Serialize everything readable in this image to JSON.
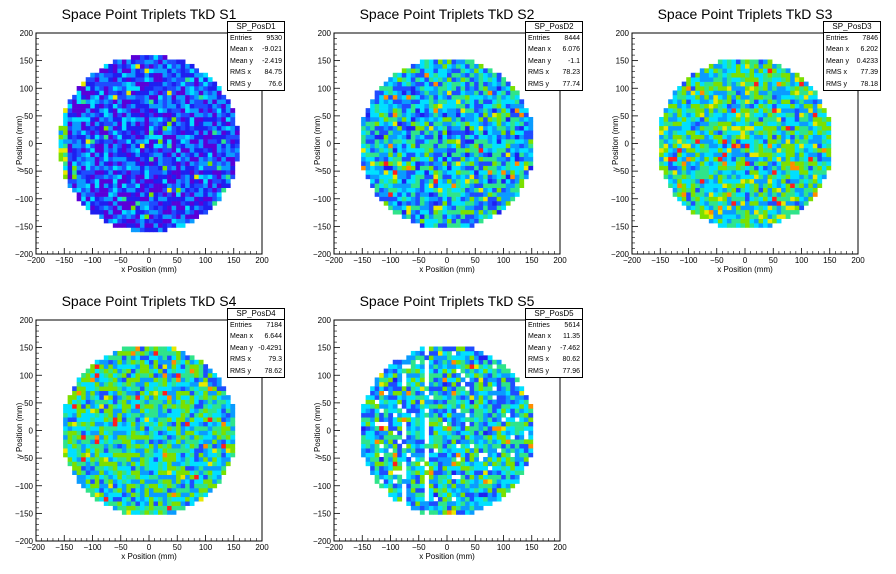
{
  "panels": [
    {
      "title": "Space Point Triplets TkD S1",
      "stats": {
        "name": "SP_PosD1",
        "rows": [
          [
            "Entries",
            "9530"
          ],
          [
            "Mean x",
            "-9.021"
          ],
          [
            "Mean y",
            "-2.419"
          ],
          [
            "RMS x",
            "84.75"
          ],
          [
            "RMS y",
            "76.6"
          ]
        ]
      }
    },
    {
      "title": "Space Point Triplets TkD S2",
      "stats": {
        "name": "SP_PosD2",
        "rows": [
          [
            "Entries",
            "8444"
          ],
          [
            "Mean x",
            "6.076"
          ],
          [
            "Mean y",
            "-1.1"
          ],
          [
            "RMS x",
            "78.23"
          ],
          [
            "RMS y",
            "77.74"
          ]
        ]
      }
    },
    {
      "title": "Space Point Triplets TkD S3",
      "stats": {
        "name": "SP_PosD3",
        "rows": [
          [
            "Entries",
            "7846"
          ],
          [
            "Mean x",
            "6.202"
          ],
          [
            "Mean y",
            "0.4233"
          ],
          [
            "RMS x",
            "77.39"
          ],
          [
            "RMS y",
            "78.18"
          ]
        ]
      }
    },
    {
      "title": "Space Point Triplets TkD S4",
      "stats": {
        "name": "SP_PosD4",
        "rows": [
          [
            "Entries",
            "7184"
          ],
          [
            "Mean x",
            "6.644"
          ],
          [
            "Mean y",
            "-0.4291"
          ],
          [
            "RMS x",
            "79.3"
          ],
          [
            "RMS y",
            "78.62"
          ]
        ]
      }
    },
    {
      "title": "Space Point Triplets TkD S5",
      "stats": {
        "name": "SP_PosD5",
        "rows": [
          [
            "Entries",
            "5614"
          ],
          [
            "Mean x",
            "11.35"
          ],
          [
            "Mean y",
            "-7.462"
          ],
          [
            "RMS x",
            "80.62"
          ],
          [
            "RMS y",
            "77.96"
          ]
        ]
      }
    }
  ],
  "chart_data": [
    {
      "type": "heatmap",
      "title": "Space Point Triplets TkD S1",
      "xlabel": "x Position (mm)",
      "ylabel": "y Position (mm)",
      "xlim": [
        -200,
        200
      ],
      "ylim": [
        -200,
        200
      ],
      "xticks": [
        -200,
        -150,
        -100,
        -50,
        0,
        50,
        100,
        150,
        200
      ],
      "yticks": [
        -200,
        -150,
        -100,
        -50,
        0,
        50,
        100,
        150,
        200
      ],
      "disk_radius": 160,
      "mean_level": 0.22,
      "edge_hot_side": "left",
      "colors": [
        "#5a00d8",
        "#1f1ff0",
        "#1e4cff",
        "#0a9bff",
        "#00e0ff",
        "#2fe48a",
        "#7be000",
        "#e8e800",
        "#ff8c00",
        "#ff1e1e"
      ]
    },
    {
      "type": "heatmap",
      "title": "Space Point Triplets TkD S2",
      "xlabel": "x Position (mm)",
      "ylabel": "y Position (mm)",
      "xlim": [
        -200,
        200
      ],
      "ylim": [
        -200,
        200
      ],
      "xticks": [
        -200,
        -150,
        -100,
        -50,
        0,
        50,
        100,
        150,
        200
      ],
      "yticks": [
        -200,
        -150,
        -100,
        -50,
        0,
        50,
        100,
        150,
        200
      ],
      "disk_radius": 155,
      "mean_level": 0.4,
      "colors": [
        "#5a00d8",
        "#1f1ff0",
        "#1e4cff",
        "#0a9bff",
        "#00e0ff",
        "#2fe48a",
        "#7be000",
        "#e8e800",
        "#ff8c00",
        "#ff1e1e"
      ]
    },
    {
      "type": "heatmap",
      "title": "Space Point Triplets TkD S3",
      "xlabel": "x Position (mm)",
      "ylabel": "y Position (mm)",
      "xlim": [
        -200,
        200
      ],
      "ylim": [
        -200,
        200
      ],
      "xticks": [
        -200,
        -150,
        -100,
        -50,
        0,
        50,
        100,
        150,
        200
      ],
      "yticks": [
        -200,
        -150,
        -100,
        -50,
        0,
        50,
        100,
        150,
        200
      ],
      "disk_radius": 155,
      "mean_level": 0.5,
      "colors": [
        "#5a00d8",
        "#1f1ff0",
        "#1e4cff",
        "#0a9bff",
        "#00e0ff",
        "#2fe48a",
        "#7be000",
        "#e8e800",
        "#ff8c00",
        "#ff1e1e"
      ]
    },
    {
      "type": "heatmap",
      "title": "Space Point Triplets TkD S4",
      "xlabel": "x Position (mm)",
      "ylabel": "y Position (mm)",
      "xlim": [
        -200,
        200
      ],
      "ylim": [
        -200,
        200
      ],
      "xticks": [
        -200,
        -150,
        -100,
        -50,
        0,
        50,
        100,
        150,
        200
      ],
      "yticks": [
        -200,
        -150,
        -100,
        -50,
        0,
        50,
        100,
        150,
        200
      ],
      "disk_radius": 155,
      "mean_level": 0.48,
      "colors": [
        "#5a00d8",
        "#1f1ff0",
        "#1e4cff",
        "#0a9bff",
        "#00e0ff",
        "#2fe48a",
        "#7be000",
        "#e8e800",
        "#ff8c00",
        "#ff1e1e"
      ]
    },
    {
      "type": "heatmap",
      "title": "Space Point Triplets TkD S5",
      "xlabel": "x Position (mm)",
      "ylabel": "y Position (mm)",
      "xlim": [
        -200,
        200
      ],
      "ylim": [
        -200,
        200
      ],
      "xticks": [
        -200,
        -150,
        -100,
        -50,
        0,
        50,
        100,
        150,
        200
      ],
      "yticks": [
        -200,
        -150,
        -100,
        -50,
        0,
        50,
        100,
        150,
        200
      ],
      "disk_radius": 155,
      "mean_level": 0.42,
      "empty_stripes_x": [
        -75,
        -35
      ],
      "colors": [
        "#5a00d8",
        "#1f1ff0",
        "#1e4cff",
        "#0a9bff",
        "#00e0ff",
        "#2fe48a",
        "#7be000",
        "#e8e800",
        "#ff8c00",
        "#ff1e1e"
      ]
    }
  ]
}
